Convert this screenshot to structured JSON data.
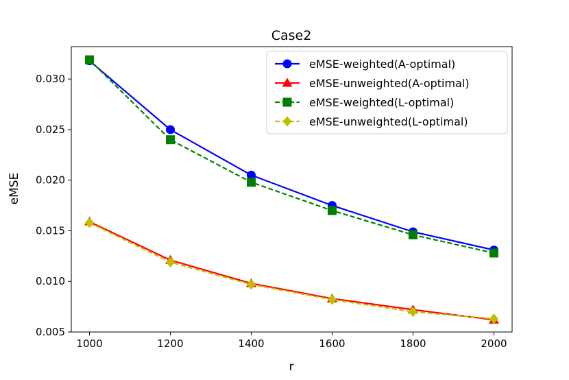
{
  "chart_data": {
    "type": "line",
    "title": "Case2",
    "xlabel": "r",
    "ylabel": "eMSE",
    "x": [
      1000,
      1200,
      1400,
      1600,
      1800,
      2000
    ],
    "xlim": [
      955,
      2045
    ],
    "ylim": [
      0.005,
      0.0332
    ],
    "xticks": [
      1000,
      1200,
      1400,
      1600,
      1800,
      2000
    ],
    "xtick_labels": [
      "1000",
      "1200",
      "1400",
      "1600",
      "1800",
      "2000"
    ],
    "yticks": [
      0.005,
      0.01,
      0.015,
      0.02,
      0.025,
      0.03
    ],
    "ytick_labels": [
      "0.005",
      "0.010",
      "0.015",
      "0.020",
      "0.025",
      "0.030"
    ],
    "grid": false,
    "legend_position": "top-right",
    "series": [
      {
        "name": "eMSE-weighted(A-optimal)",
        "color": "#0000ff",
        "marker": "circle",
        "linestyle": "solid",
        "values": [
          0.0318,
          0.025,
          0.0205,
          0.0175,
          0.0149,
          0.0131
        ]
      },
      {
        "name": "eMSE-unweighted(A-optimal)",
        "color": "#ff0000",
        "marker": "triangle",
        "linestyle": "solid",
        "values": [
          0.0159,
          0.0121,
          0.0098,
          0.0083,
          0.0072,
          0.0062
        ]
      },
      {
        "name": "eMSE-weighted(L-optimal)",
        "color": "#008000",
        "marker": "square",
        "linestyle": "dashed",
        "values": [
          0.0319,
          0.024,
          0.0198,
          0.017,
          0.0146,
          0.0128
        ]
      },
      {
        "name": "eMSE-unweighted(L-optimal)",
        "color": "#bfbf00",
        "marker": "diamond",
        "linestyle": "dashed",
        "values": [
          0.0158,
          0.0119,
          0.0097,
          0.0082,
          0.007,
          0.0063
        ]
      }
    ]
  }
}
